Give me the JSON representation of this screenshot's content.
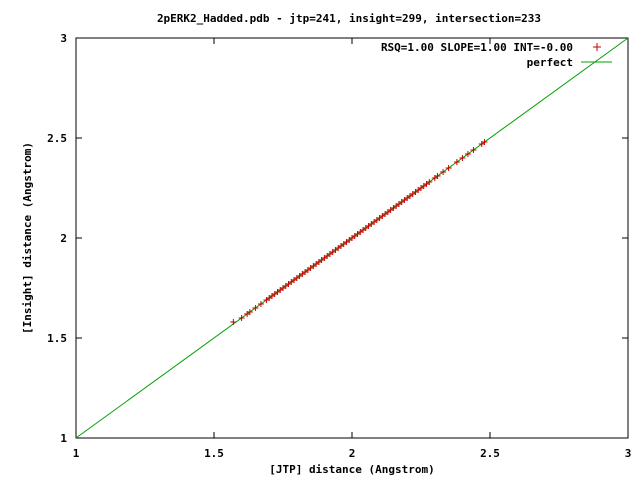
{
  "chart_data": {
    "type": "scatter",
    "title": "2pERK2_Hadded.pdb - jtp=241, insight=299, intersection=233",
    "xlabel": "[JTP] distance (Angstrom)",
    "ylabel": "[Insight] distance (Angstrom)",
    "xlim": [
      1,
      3
    ],
    "ylim": [
      1,
      3
    ],
    "xticks": [
      "1",
      "1.5",
      "2",
      "2.5",
      "3"
    ],
    "yticks": [
      "1",
      "1.5",
      "2",
      "2.5",
      "3"
    ],
    "grid": false,
    "legend_position": "top-right",
    "series": [
      {
        "name": "RSQ=1.00 SLOPE=1.00 INT=-0.00",
        "marker": "+",
        "color": "#cc0000",
        "points": [
          [
            1.57,
            1.58
          ],
          [
            1.6,
            1.6
          ],
          [
            1.62,
            1.62
          ],
          [
            1.63,
            1.63
          ],
          [
            1.65,
            1.65
          ],
          [
            1.67,
            1.67
          ],
          [
            1.69,
            1.69
          ],
          [
            1.7,
            1.7
          ],
          [
            1.71,
            1.71
          ],
          [
            1.72,
            1.72
          ],
          [
            1.73,
            1.73
          ],
          [
            1.74,
            1.74
          ],
          [
            1.75,
            1.75
          ],
          [
            1.76,
            1.76
          ],
          [
            1.77,
            1.77
          ],
          [
            1.78,
            1.78
          ],
          [
            1.79,
            1.79
          ],
          [
            1.8,
            1.8
          ],
          [
            1.81,
            1.81
          ],
          [
            1.82,
            1.82
          ],
          [
            1.83,
            1.83
          ],
          [
            1.84,
            1.84
          ],
          [
            1.85,
            1.85
          ],
          [
            1.86,
            1.86
          ],
          [
            1.87,
            1.87
          ],
          [
            1.88,
            1.88
          ],
          [
            1.89,
            1.89
          ],
          [
            1.9,
            1.9
          ],
          [
            1.91,
            1.91
          ],
          [
            1.92,
            1.92
          ],
          [
            1.93,
            1.93
          ],
          [
            1.94,
            1.94
          ],
          [
            1.95,
            1.95
          ],
          [
            1.96,
            1.96
          ],
          [
            1.97,
            1.97
          ],
          [
            1.98,
            1.98
          ],
          [
            1.99,
            1.99
          ],
          [
            2.0,
            2.0
          ],
          [
            2.01,
            2.01
          ],
          [
            2.02,
            2.02
          ],
          [
            2.03,
            2.03
          ],
          [
            2.04,
            2.04
          ],
          [
            2.05,
            2.05
          ],
          [
            2.06,
            2.06
          ],
          [
            2.07,
            2.07
          ],
          [
            2.08,
            2.08
          ],
          [
            2.09,
            2.09
          ],
          [
            2.1,
            2.1
          ],
          [
            2.11,
            2.11
          ],
          [
            2.12,
            2.12
          ],
          [
            2.13,
            2.13
          ],
          [
            2.14,
            2.14
          ],
          [
            2.15,
            2.15
          ],
          [
            2.16,
            2.16
          ],
          [
            2.17,
            2.17
          ],
          [
            2.18,
            2.18
          ],
          [
            2.19,
            2.19
          ],
          [
            2.2,
            2.2
          ],
          [
            2.21,
            2.21
          ],
          [
            2.22,
            2.22
          ],
          [
            2.23,
            2.23
          ],
          [
            2.24,
            2.24
          ],
          [
            2.25,
            2.25
          ],
          [
            2.26,
            2.26
          ],
          [
            2.27,
            2.27
          ],
          [
            2.28,
            2.28
          ],
          [
            2.3,
            2.3
          ],
          [
            2.31,
            2.31
          ],
          [
            2.33,
            2.33
          ],
          [
            2.35,
            2.35
          ],
          [
            2.38,
            2.38
          ],
          [
            2.4,
            2.4
          ],
          [
            2.42,
            2.42
          ],
          [
            2.44,
            2.44
          ],
          [
            2.47,
            2.47
          ],
          [
            2.48,
            2.48
          ]
        ]
      },
      {
        "name": "perfect",
        "type": "line",
        "color": "#00a000",
        "x": [
          1,
          3
        ],
        "y": [
          1,
          3
        ]
      }
    ]
  }
}
